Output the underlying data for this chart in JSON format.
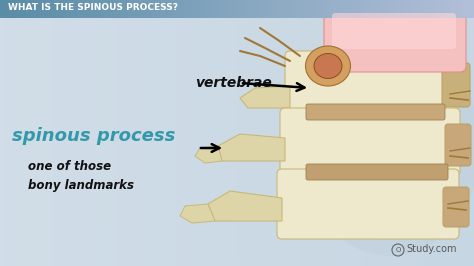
{
  "header_text": "WHAT IS THE SPINOUS PROCESS?",
  "header_text_color": "#ffffff",
  "header_fontsize": 6.5,
  "label_vertebrae": "vertebrae",
  "label_spinous": "spinous process",
  "label_bony": "one of those\nbony landmarks",
  "label_study": "Study.com",
  "spinous_color": "#3399aa",
  "label_color": "#111111",
  "bone_light": "#eee8cc",
  "bone_mid": "#ddd5a8",
  "bone_dark": "#c8b87a",
  "bone_shadow": "#b8a060",
  "disc_pink": "#f0b0b0",
  "disc_pink2": "#e88888",
  "nerve_brown": "#a07838",
  "bg_left": "#d0dde8",
  "bg_right": "#c8d8e4",
  "header_bg": "#6a9ab0"
}
